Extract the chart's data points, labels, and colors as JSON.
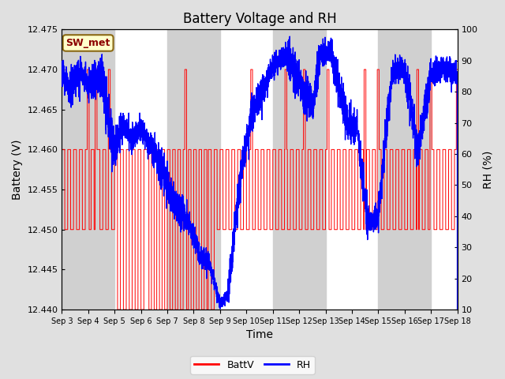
{
  "title": "Battery Voltage and RH",
  "xlabel": "Time",
  "ylabel_left": "Battery (V)",
  "ylabel_right": "RH (%)",
  "annotation": "SW_met",
  "ylim_left": [
    12.44,
    12.475
  ],
  "ylim_right": [
    10,
    100
  ],
  "yticks_left": [
    12.44,
    12.445,
    12.45,
    12.455,
    12.46,
    12.465,
    12.47,
    12.475
  ],
  "yticks_right": [
    10,
    20,
    30,
    40,
    50,
    60,
    70,
    80,
    90,
    100
  ],
  "xtick_labels": [
    "Sep 3",
    "Sep 4",
    "Sep 5",
    "Sep 6",
    "Sep 7",
    "Sep 8",
    "Sep 9",
    "Sep 10",
    "Sep 11",
    "Sep 12",
    "Sep 13",
    "Sep 14",
    "Sep 15",
    "Sep 16",
    "Sep 17",
    "Sep 18"
  ],
  "battv_color": "#FF0000",
  "rh_color": "#0000FF",
  "bg_color_outer": "#E0E0E0",
  "bg_color_inner": "#FFFFFF",
  "band_color": "#D0D0D0",
  "legend_battv": "BattV",
  "legend_rh": "RH",
  "title_fontsize": 12,
  "axis_fontsize": 10,
  "tick_fontsize": 8
}
